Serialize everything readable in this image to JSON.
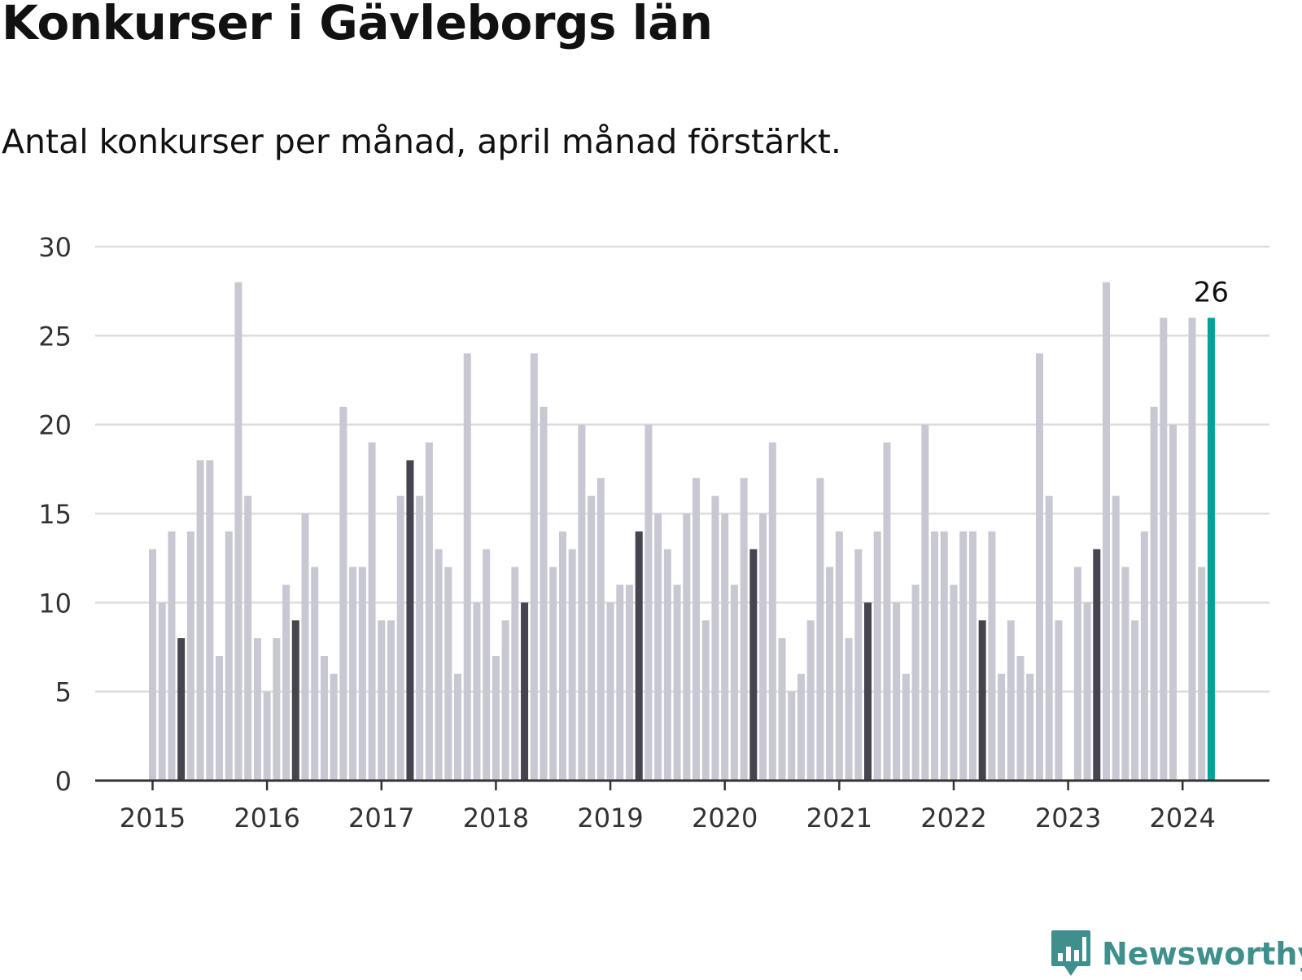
{
  "title": "Konkurser i Gävleborgs län",
  "subtitle": "Antal konkurser per månad, april månad förstärkt.",
  "brand": {
    "name": "Newsworthy",
    "icon": "newsworthy-logo-icon",
    "color": "#3f8f8d"
  },
  "colors": {
    "bar": "#c8c8d2",
    "april": "#45444f",
    "highlight": "#00a398",
    "grid": "#dddddd",
    "axis": "#333333"
  },
  "chart_data": {
    "type": "bar",
    "title": "Konkurser i Gävleborgs län",
    "subtitle": "Antal konkurser per månad, april månad förstärkt.",
    "xlabel": "",
    "ylabel": "",
    "ylim": [
      0,
      30
    ],
    "yticks": [
      0,
      5,
      10,
      15,
      20,
      25,
      30
    ],
    "xticks": [
      "2015",
      "2016",
      "2017",
      "2018",
      "2019",
      "2020",
      "2021",
      "2022",
      "2023",
      "2024"
    ],
    "grid": true,
    "start": "2015-01",
    "highlight_label": "26",
    "series": [
      {
        "year": "2015",
        "values": [
          13,
          10,
          14,
          8,
          14,
          18,
          18,
          7,
          14,
          28,
          16,
          8
        ]
      },
      {
        "year": "2016",
        "values": [
          5,
          8,
          11,
          9,
          15,
          12,
          7,
          6,
          21,
          12,
          12,
          19
        ]
      },
      {
        "year": "2017",
        "values": [
          9,
          9,
          16,
          18,
          16,
          19,
          13,
          12,
          6,
          24,
          10,
          13
        ]
      },
      {
        "year": "2018",
        "values": [
          7,
          9,
          12,
          10,
          24,
          21,
          12,
          14,
          13,
          20,
          16,
          17
        ]
      },
      {
        "year": "2019",
        "values": [
          10,
          11,
          11,
          14,
          20,
          15,
          13,
          11,
          15,
          17,
          9,
          16
        ]
      },
      {
        "year": "2020",
        "values": [
          15,
          11,
          17,
          13,
          15,
          19,
          8,
          5,
          6,
          9,
          17,
          12
        ]
      },
      {
        "year": "2021",
        "values": [
          14,
          8,
          13,
          10,
          14,
          19,
          10,
          6,
          11,
          20,
          14,
          14
        ]
      },
      {
        "year": "2022",
        "values": [
          11,
          14,
          14,
          9,
          14,
          6,
          9,
          7,
          6,
          24,
          16,
          9
        ]
      },
      {
        "year": "2023",
        "values": [
          0,
          12,
          10,
          13,
          28,
          16,
          12,
          9,
          14,
          21,
          26,
          20
        ]
      },
      {
        "year": "2024",
        "values": [
          0,
          26,
          12,
          26
        ]
      }
    ]
  }
}
